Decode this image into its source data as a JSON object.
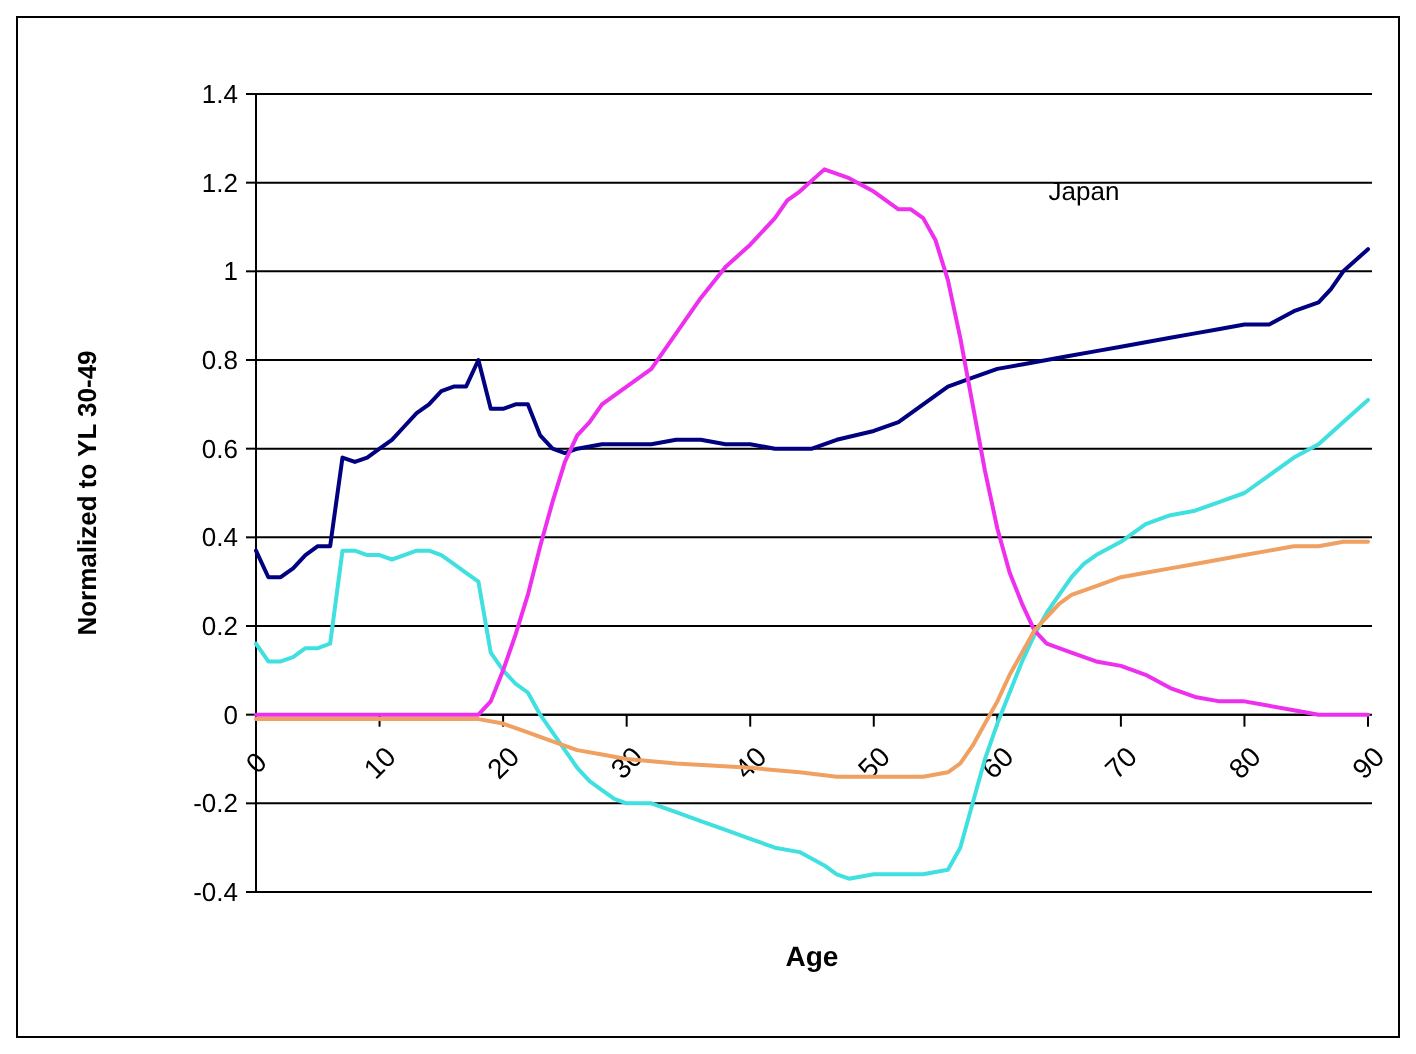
{
  "chart_data": {
    "type": "line",
    "xlabel": "Age",
    "ylabel": "Normalized to YL 30-49",
    "annotations": [
      "Japan"
    ],
    "xlim": [
      0,
      90
    ],
    "xticks": [
      0,
      10,
      20,
      30,
      40,
      50,
      60,
      70,
      80,
      90
    ],
    "ylim": [
      -0.4,
      1.4
    ],
    "yticks": [
      -0.4,
      -0.2,
      0,
      0.2,
      0.4,
      0.6,
      0.8,
      1,
      1.2,
      1.4
    ],
    "grid": "y",
    "marker": "none",
    "line_style": "solid",
    "series": [
      {
        "color": "#000080",
        "x": [
          0,
          1,
          2,
          3,
          4,
          5,
          6,
          7,
          8,
          9,
          10,
          11,
          12,
          13,
          14,
          15,
          16,
          17,
          18,
          19,
          20,
          21,
          22,
          23,
          24,
          25,
          26,
          28,
          30,
          32,
          34,
          36,
          38,
          40,
          42,
          44,
          45,
          47,
          50,
          52,
          54,
          56,
          58,
          60,
          62,
          64,
          66,
          68,
          70,
          72,
          74,
          76,
          78,
          80,
          82,
          84,
          86,
          87,
          88,
          90
        ],
        "values": [
          0.37,
          0.31,
          0.31,
          0.33,
          0.36,
          0.38,
          0.38,
          0.58,
          0.57,
          0.58,
          0.6,
          0.62,
          0.65,
          0.68,
          0.7,
          0.73,
          0.74,
          0.74,
          0.8,
          0.69,
          0.69,
          0.7,
          0.7,
          0.63,
          0.6,
          0.59,
          0.6,
          0.61,
          0.61,
          0.61,
          0.62,
          0.62,
          0.61,
          0.61,
          0.6,
          0.6,
          0.6,
          0.62,
          0.64,
          0.66,
          0.7,
          0.74,
          0.76,
          0.78,
          0.79,
          0.8,
          0.81,
          0.82,
          0.83,
          0.84,
          0.85,
          0.86,
          0.87,
          0.88,
          0.88,
          0.91,
          0.93,
          0.96,
          1.0,
          1.05
        ]
      },
      {
        "color": "#40e0e0",
        "x": [
          0,
          1,
          2,
          3,
          4,
          5,
          6,
          7,
          8,
          9,
          10,
          11,
          12,
          13,
          14,
          15,
          16,
          17,
          18,
          19,
          20,
          21,
          22,
          23,
          24,
          25,
          26,
          27,
          28,
          29,
          30,
          32,
          34,
          36,
          38,
          40,
          42,
          44,
          46,
          47,
          48,
          50,
          52,
          54,
          56,
          57,
          58,
          59,
          60,
          61,
          62,
          63,
          64,
          65,
          66,
          67,
          68,
          70,
          72,
          74,
          76,
          78,
          80,
          82,
          84,
          86,
          88,
          90
        ],
        "values": [
          0.16,
          0.12,
          0.12,
          0.13,
          0.15,
          0.15,
          0.16,
          0.37,
          0.37,
          0.36,
          0.36,
          0.35,
          0.36,
          0.37,
          0.37,
          0.36,
          0.34,
          0.32,
          0.3,
          0.14,
          0.1,
          0.07,
          0.05,
          0,
          -0.04,
          -0.08,
          -0.12,
          -0.15,
          -0.17,
          -0.19,
          -0.2,
          -0.2,
          -0.22,
          -0.24,
          -0.26,
          -0.28,
          -0.3,
          -0.31,
          -0.34,
          -0.36,
          -0.37,
          -0.36,
          -0.36,
          -0.36,
          -0.35,
          -0.3,
          -0.2,
          -0.1,
          -0.02,
          0.05,
          0.12,
          0.18,
          0.23,
          0.27,
          0.31,
          0.34,
          0.36,
          0.39,
          0.43,
          0.45,
          0.46,
          0.48,
          0.5,
          0.54,
          0.58,
          0.61,
          0.66,
          0.71
        ]
      },
      {
        "color": "#ee30ee",
        "x": [
          0,
          18,
          19,
          20,
          21,
          22,
          23,
          24,
          25,
          26,
          27,
          28,
          30,
          32,
          34,
          36,
          38,
          40,
          42,
          43,
          44,
          46,
          48,
          50,
          52,
          53,
          54,
          55,
          56,
          57,
          58,
          59,
          60,
          61,
          62,
          63,
          64,
          66,
          68,
          70,
          72,
          74,
          76,
          78,
          80,
          82,
          84,
          86,
          90
        ],
        "values": [
          0,
          0,
          0.03,
          0.1,
          0.18,
          0.27,
          0.38,
          0.48,
          0.57,
          0.63,
          0.66,
          0.7,
          0.74,
          0.78,
          0.86,
          0.94,
          1.01,
          1.06,
          1.12,
          1.16,
          1.18,
          1.23,
          1.21,
          1.18,
          1.14,
          1.14,
          1.12,
          1.07,
          0.98,
          0.85,
          0.7,
          0.55,
          0.42,
          0.32,
          0.25,
          0.19,
          0.16,
          0.14,
          0.12,
          0.11,
          0.09,
          0.06,
          0.04,
          0.03,
          0.03,
          0.02,
          0.01,
          0,
          0
        ]
      },
      {
        "color": "#f0a060",
        "x": [
          0,
          18,
          20,
          22,
          24,
          26,
          28,
          30,
          34,
          40,
          44,
          47,
          50,
          54,
          56,
          57,
          58,
          59,
          60,
          61,
          62,
          63,
          64,
          65,
          66,
          68,
          70,
          72,
          74,
          76,
          78,
          80,
          82,
          84,
          86,
          88,
          90
        ],
        "values": [
          -0.01,
          -0.01,
          -0.02,
          -0.04,
          -0.06,
          -0.08,
          -0.09,
          -0.1,
          -0.11,
          -0.12,
          -0.13,
          -0.14,
          -0.14,
          -0.14,
          -0.13,
          -0.11,
          -0.07,
          -0.02,
          0.03,
          0.09,
          0.14,
          0.19,
          0.22,
          0.25,
          0.27,
          0.29,
          0.31,
          0.32,
          0.33,
          0.34,
          0.35,
          0.36,
          0.37,
          0.38,
          0.38,
          0.39,
          0.39
        ]
      }
    ]
  }
}
